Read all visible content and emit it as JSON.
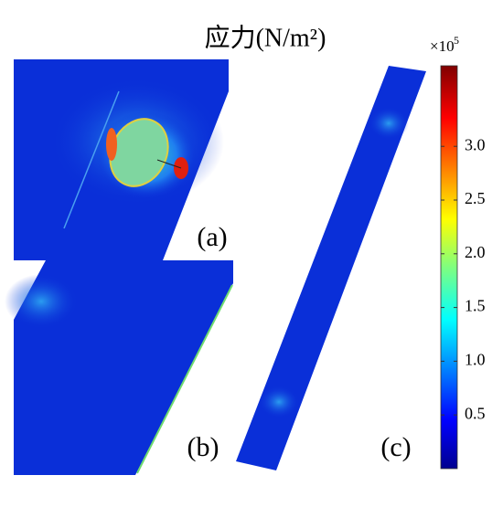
{
  "figure": {
    "title": "应力(N/m²)",
    "panels": [
      "(a)",
      "(b)",
      "(c)"
    ],
    "colorbar": {
      "multiplier": "×10",
      "exponent": "5",
      "clim": [
        0,
        3.75
      ],
      "ticks": [
        0.5,
        {
          "value": 1,
          "label": "1.0"
        },
        1.5,
        {
          "value": 2,
          "label": "2.0"
        },
        2.5,
        {
          "value": 3,
          "label": "3.0"
        }
      ]
    }
  }
}
